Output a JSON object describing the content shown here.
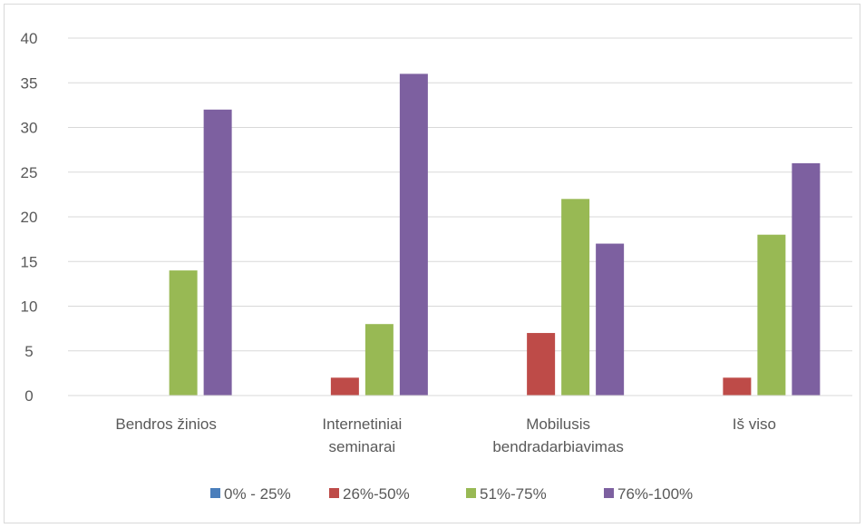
{
  "chart_data": {
    "type": "bar",
    "categories": [
      [
        "Bendros žinios"
      ],
      [
        "Internetiniai",
        "seminarai"
      ],
      [
        "Mobilusis",
        "bendradarbiavimas"
      ],
      [
        "Iš viso"
      ]
    ],
    "series": [
      {
        "name": "0% - 25%",
        "color": "#4a7ebb",
        "values": [
          0,
          0,
          0,
          0
        ]
      },
      {
        "name": "26%-50%",
        "color": "#be4b48",
        "values": [
          0,
          2,
          7,
          2
        ]
      },
      {
        "name": "51%-75%",
        "color": "#98b954",
        "values": [
          14,
          8,
          22,
          18
        ]
      },
      {
        "name": "76%-100%",
        "color": "#7d60a0",
        "values": [
          32,
          36,
          17,
          26
        ]
      }
    ],
    "ylim": [
      0,
      40
    ],
    "yticks": [
      0,
      5,
      10,
      15,
      20,
      25,
      30,
      35,
      40
    ],
    "grid": true,
    "legend_position": "bottom"
  }
}
